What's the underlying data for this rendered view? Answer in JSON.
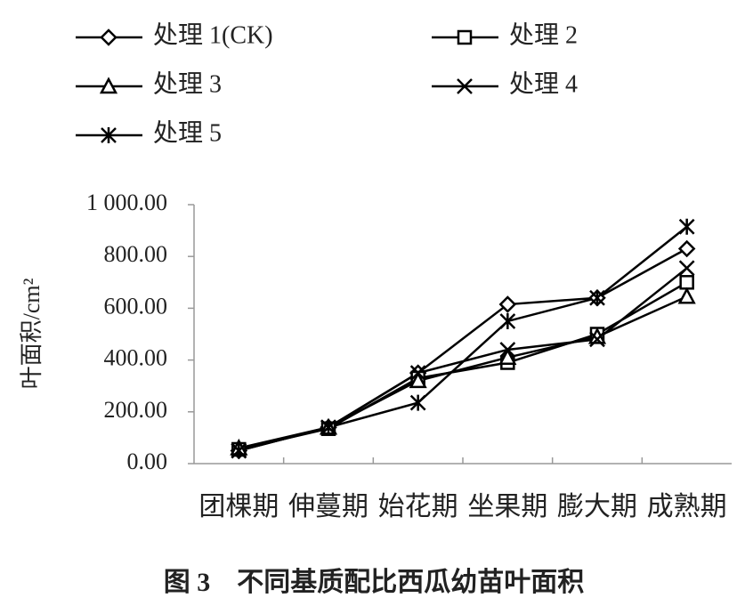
{
  "chart_data": {
    "type": "line",
    "title": "图 3　不同基质配比西瓜幼苗叶面积",
    "y_label": "叶面积/cm²",
    "categories": [
      "团棵期",
      "伸蔓期",
      "始花期",
      "坐果期",
      "膨大期",
      "成熟期"
    ],
    "series": [
      {
        "name": "处理 1(CK)",
        "color": "#000000",
        "marker": "diamond",
        "values": [
          50,
          140,
          350,
          615,
          640,
          830
        ]
      },
      {
        "name": "处理 2",
        "color": "#000000",
        "marker": "square",
        "values": [
          55,
          135,
          330,
          390,
          500,
          700
        ]
      },
      {
        "name": "处理 3",
        "color": "#000000",
        "marker": "triangle",
        "values": [
          60,
          140,
          320,
          410,
          490,
          645
        ]
      },
      {
        "name": "处理 4",
        "color": "#000000",
        "marker": "x",
        "values": [
          50,
          140,
          350,
          440,
          480,
          755
        ]
      },
      {
        "name": "处理 5",
        "color": "#000000",
        "marker": "star",
        "values": [
          50,
          140,
          235,
          550,
          640,
          915
        ]
      }
    ],
    "ylim": [
      0,
      1000
    ],
    "yticks": [
      {
        "value": 0,
        "label": "0.00"
      },
      {
        "value": 200,
        "label": "200.00"
      },
      {
        "value": 400,
        "label": "400.00"
      },
      {
        "value": 600,
        "label": "600.00"
      },
      {
        "value": 800,
        "label": "800.00"
      },
      {
        "value": 1000,
        "label": "1 000.00"
      }
    ],
    "grid": false
  }
}
